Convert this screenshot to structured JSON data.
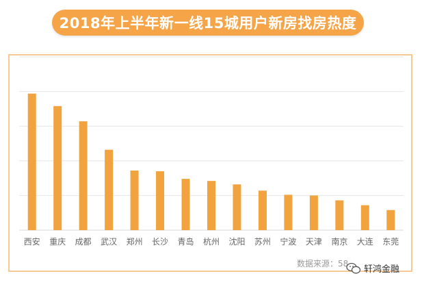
{
  "title": "2018年上半年新一线15城用户新房找房热度",
  "source_text": "数据来源：58",
  "watermark_text": "轩鸿金融",
  "colors": {
    "bar": "#f0a33f",
    "title_bg": "#f5a547",
    "frame": "#f5c995",
    "grid": "#e6e6e6"
  },
  "chart_data": {
    "type": "bar",
    "categories": [
      "西安",
      "重庆",
      "成都",
      "武汉",
      "郑州",
      "长沙",
      "青岛",
      "杭州",
      "沈阳",
      "苏州",
      "宁波",
      "天津",
      "南京",
      "大连",
      "东莞"
    ],
    "values": [
      197,
      179,
      157,
      116,
      86,
      85,
      74,
      71,
      66,
      57,
      51,
      50,
      43,
      36,
      29
    ],
    "title": "2018年上半年新一线15城用户新房找房热度",
    "xlabel": "",
    "ylabel": "",
    "ylim": [
      0,
      250
    ],
    "grid": true,
    "legend": "none"
  }
}
